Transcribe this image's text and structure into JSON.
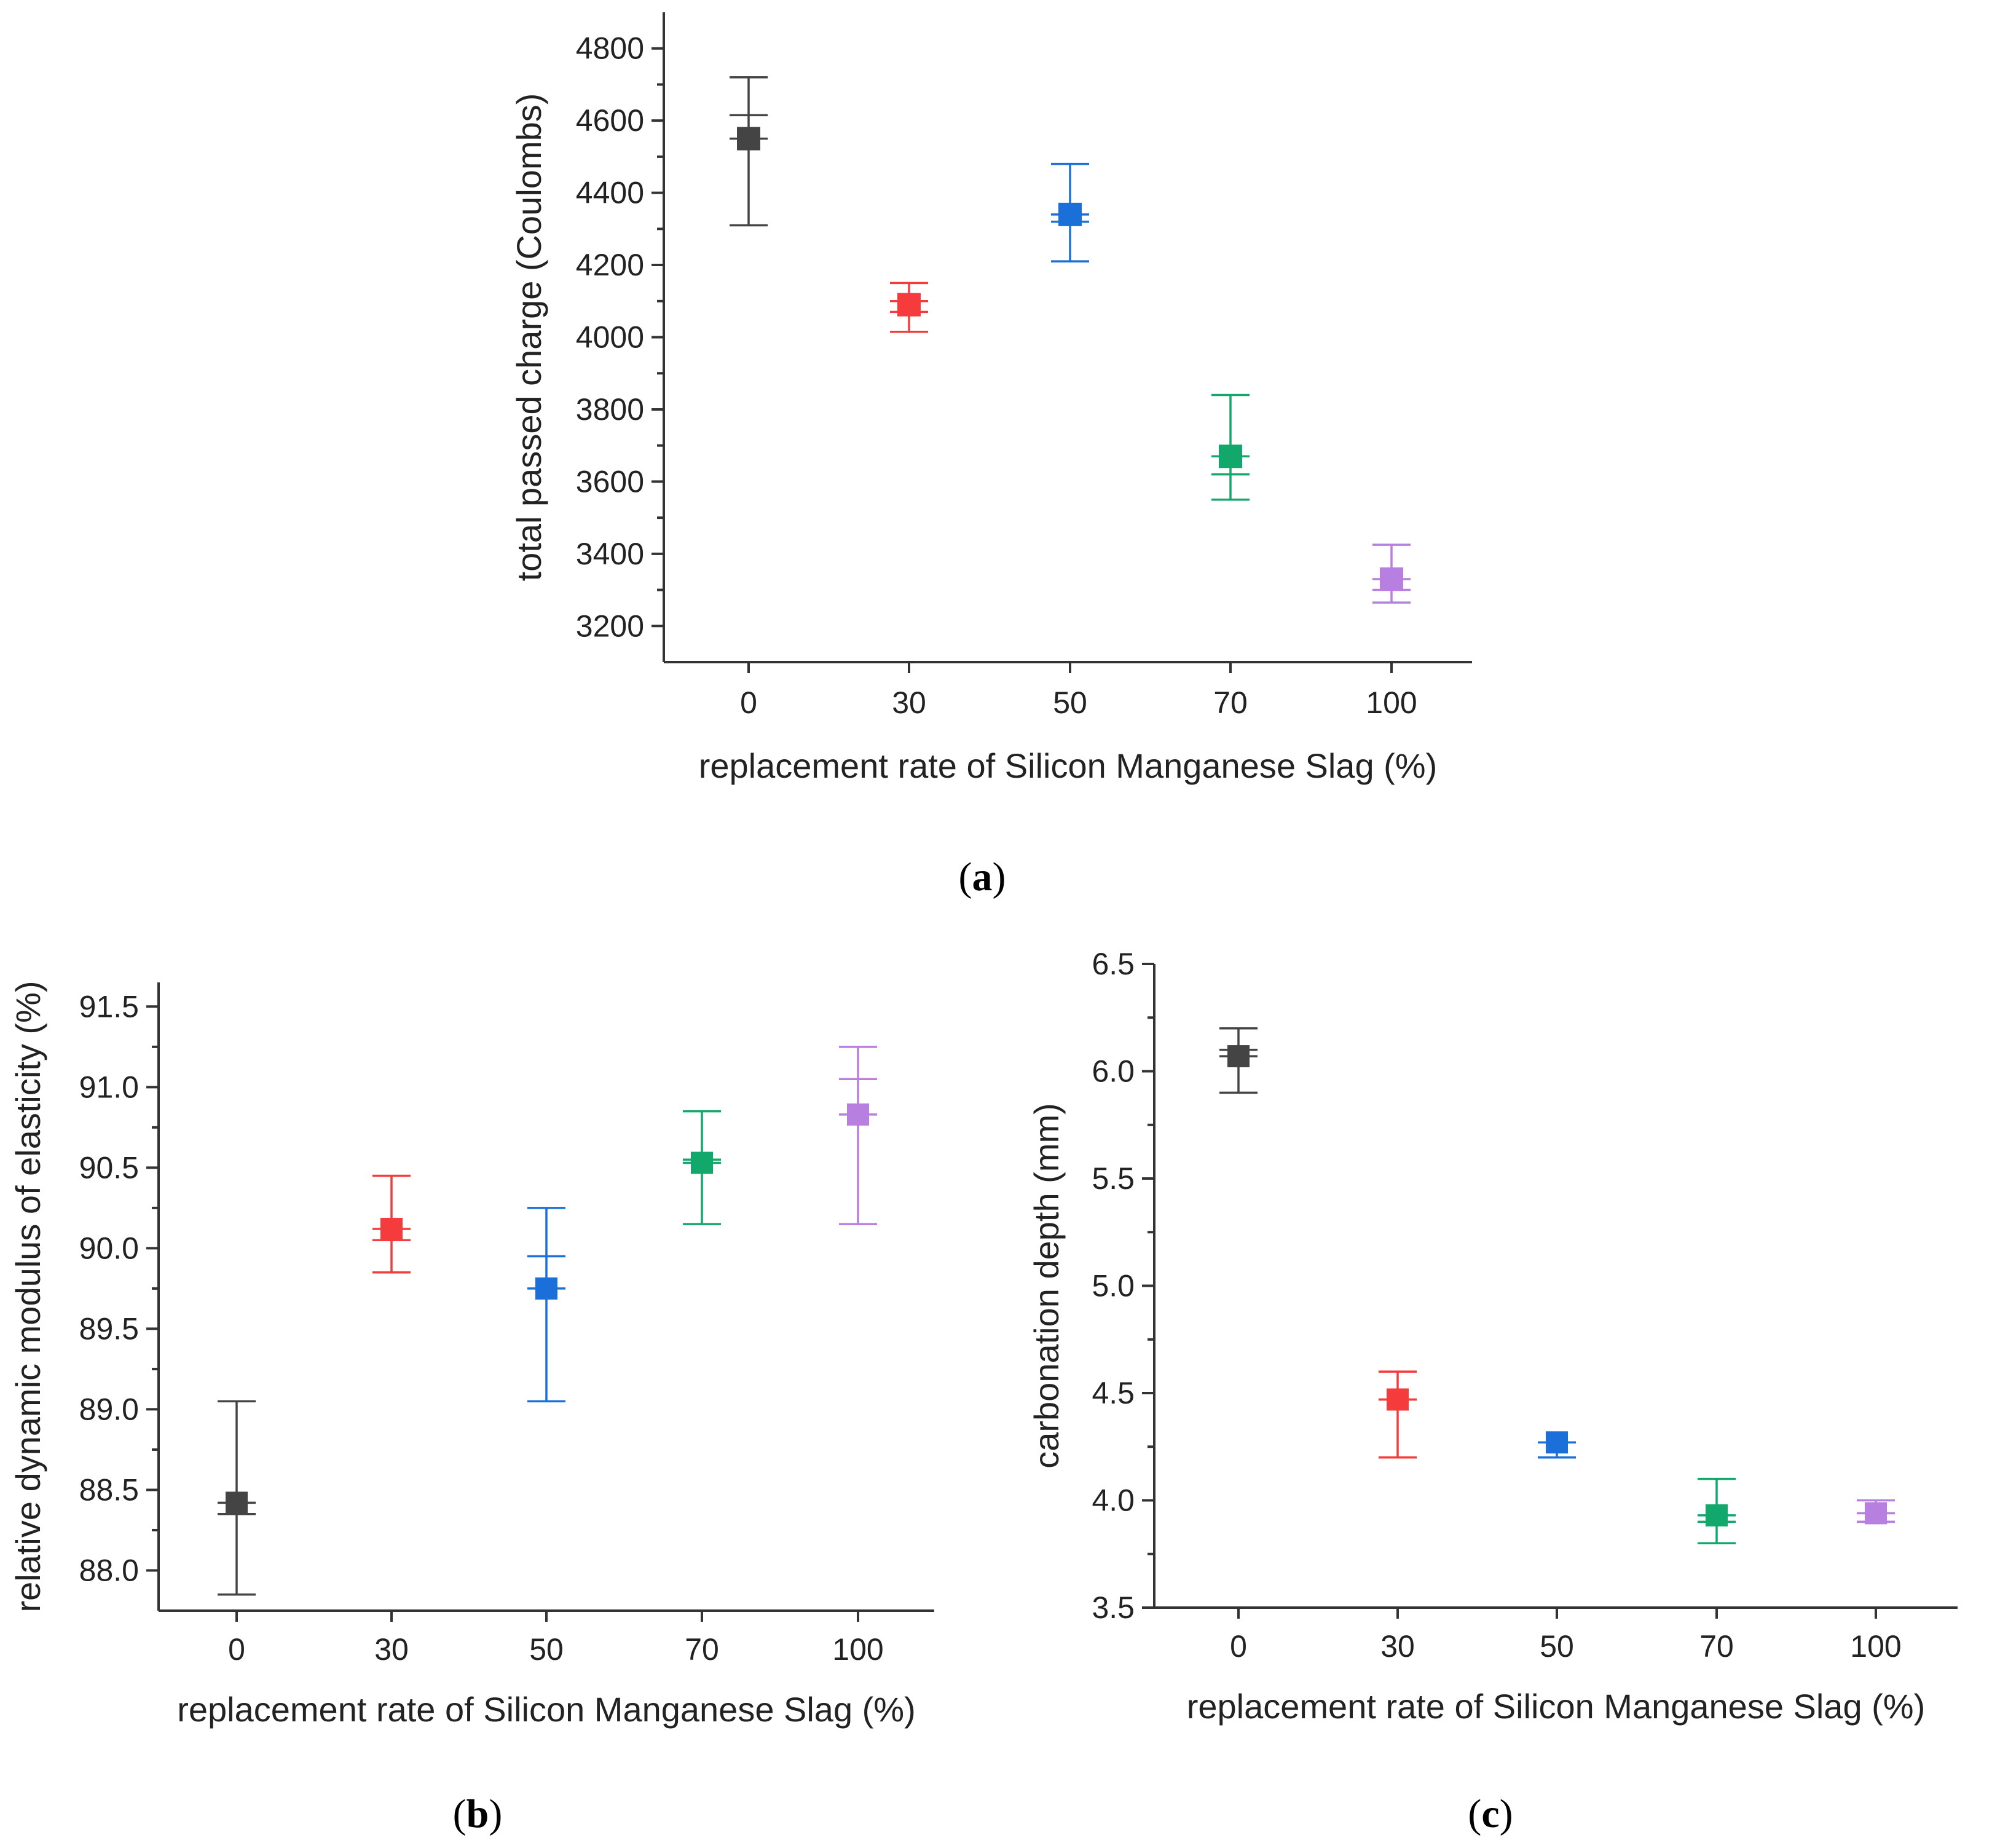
{
  "chart_data": [
    {
      "type": "scatter",
      "panel": "a",
      "xlabel": "replacement rate of Silicon Manganese Slag (%)",
      "ylabel": "total passed charge (Coulombs)",
      "categories": [
        "0",
        "30",
        "50",
        "70",
        "100"
      ],
      "ylim": [
        3100,
        4900
      ],
      "yticks": [
        3200,
        3400,
        3600,
        3800,
        4000,
        4200,
        4400,
        4600,
        4800
      ],
      "tick_labels": [
        "3200",
        "3400",
        "3600",
        "3800",
        "4000",
        "4200",
        "4400",
        "4600",
        "4800"
      ],
      "values": [
        4550,
        4090,
        4340,
        3670,
        3330
      ],
      "err_low": [
        4310,
        4015,
        4210,
        3550,
        3265
      ],
      "err_high": [
        4720,
        4150,
        4480,
        3840,
        3425
      ],
      "box_low": [
        4550,
        4070,
        4320,
        3620,
        3300
      ],
      "box_high": [
        4615,
        4100,
        4340,
        3670,
        3330
      ]
    },
    {
      "type": "scatter",
      "panel": "b",
      "xlabel": "replacement rate of Silicon Manganese Slag (%)",
      "ylabel": "relative dynamic modulus of elasticity (%)",
      "categories": [
        "0",
        "30",
        "50",
        "70",
        "100"
      ],
      "ylim": [
        87.75,
        91.65
      ],
      "yticks": [
        88.0,
        88.5,
        89.0,
        89.5,
        90.0,
        90.5,
        91.0,
        91.5
      ],
      "tick_labels": [
        "88.0",
        "88.5",
        "89.0",
        "89.5",
        "90.0",
        "90.5",
        "91.0",
        "91.5"
      ],
      "values": [
        88.42,
        90.12,
        89.75,
        90.53,
        90.83
      ],
      "err_low": [
        87.85,
        89.85,
        89.05,
        90.15,
        90.15
      ],
      "err_high": [
        89.05,
        90.45,
        90.25,
        90.85,
        91.25
      ],
      "box_low": [
        88.35,
        90.05,
        89.75,
        90.53,
        90.83
      ],
      "box_high": [
        88.42,
        90.12,
        89.95,
        90.55,
        91.05
      ]
    },
    {
      "type": "scatter",
      "panel": "c",
      "xlabel": "replacement rate of Silicon Manganese Slag (%)",
      "ylabel": "carbonation depth (mm)",
      "categories": [
        "0",
        "30",
        "50",
        "70",
        "100"
      ],
      "ylim": [
        3.5,
        6.5
      ],
      "yticks": [
        3.5,
        4.0,
        4.5,
        5.0,
        5.5,
        6.0,
        6.5
      ],
      "tick_labels": [
        "3.5",
        "4.0",
        "4.5",
        "5.0",
        "5.5",
        "6.0",
        "6.5"
      ],
      "values": [
        6.07,
        4.47,
        4.27,
        3.93,
        3.94
      ],
      "err_low": [
        5.9,
        4.2,
        4.2,
        3.8,
        3.9
      ],
      "err_high": [
        6.2,
        4.6,
        4.27,
        4.1,
        4.0
      ],
      "box_low": [
        6.07,
        4.47,
        4.2,
        3.9,
        3.9
      ],
      "box_high": [
        6.1,
        4.47,
        4.27,
        3.93,
        3.94
      ]
    }
  ],
  "series_colors": [
    "#444444",
    "#f53b3b",
    "#1a6fd8",
    "#12a86b",
    "#b77fe0"
  ],
  "panel_labels": [
    "a",
    "b",
    "c"
  ]
}
